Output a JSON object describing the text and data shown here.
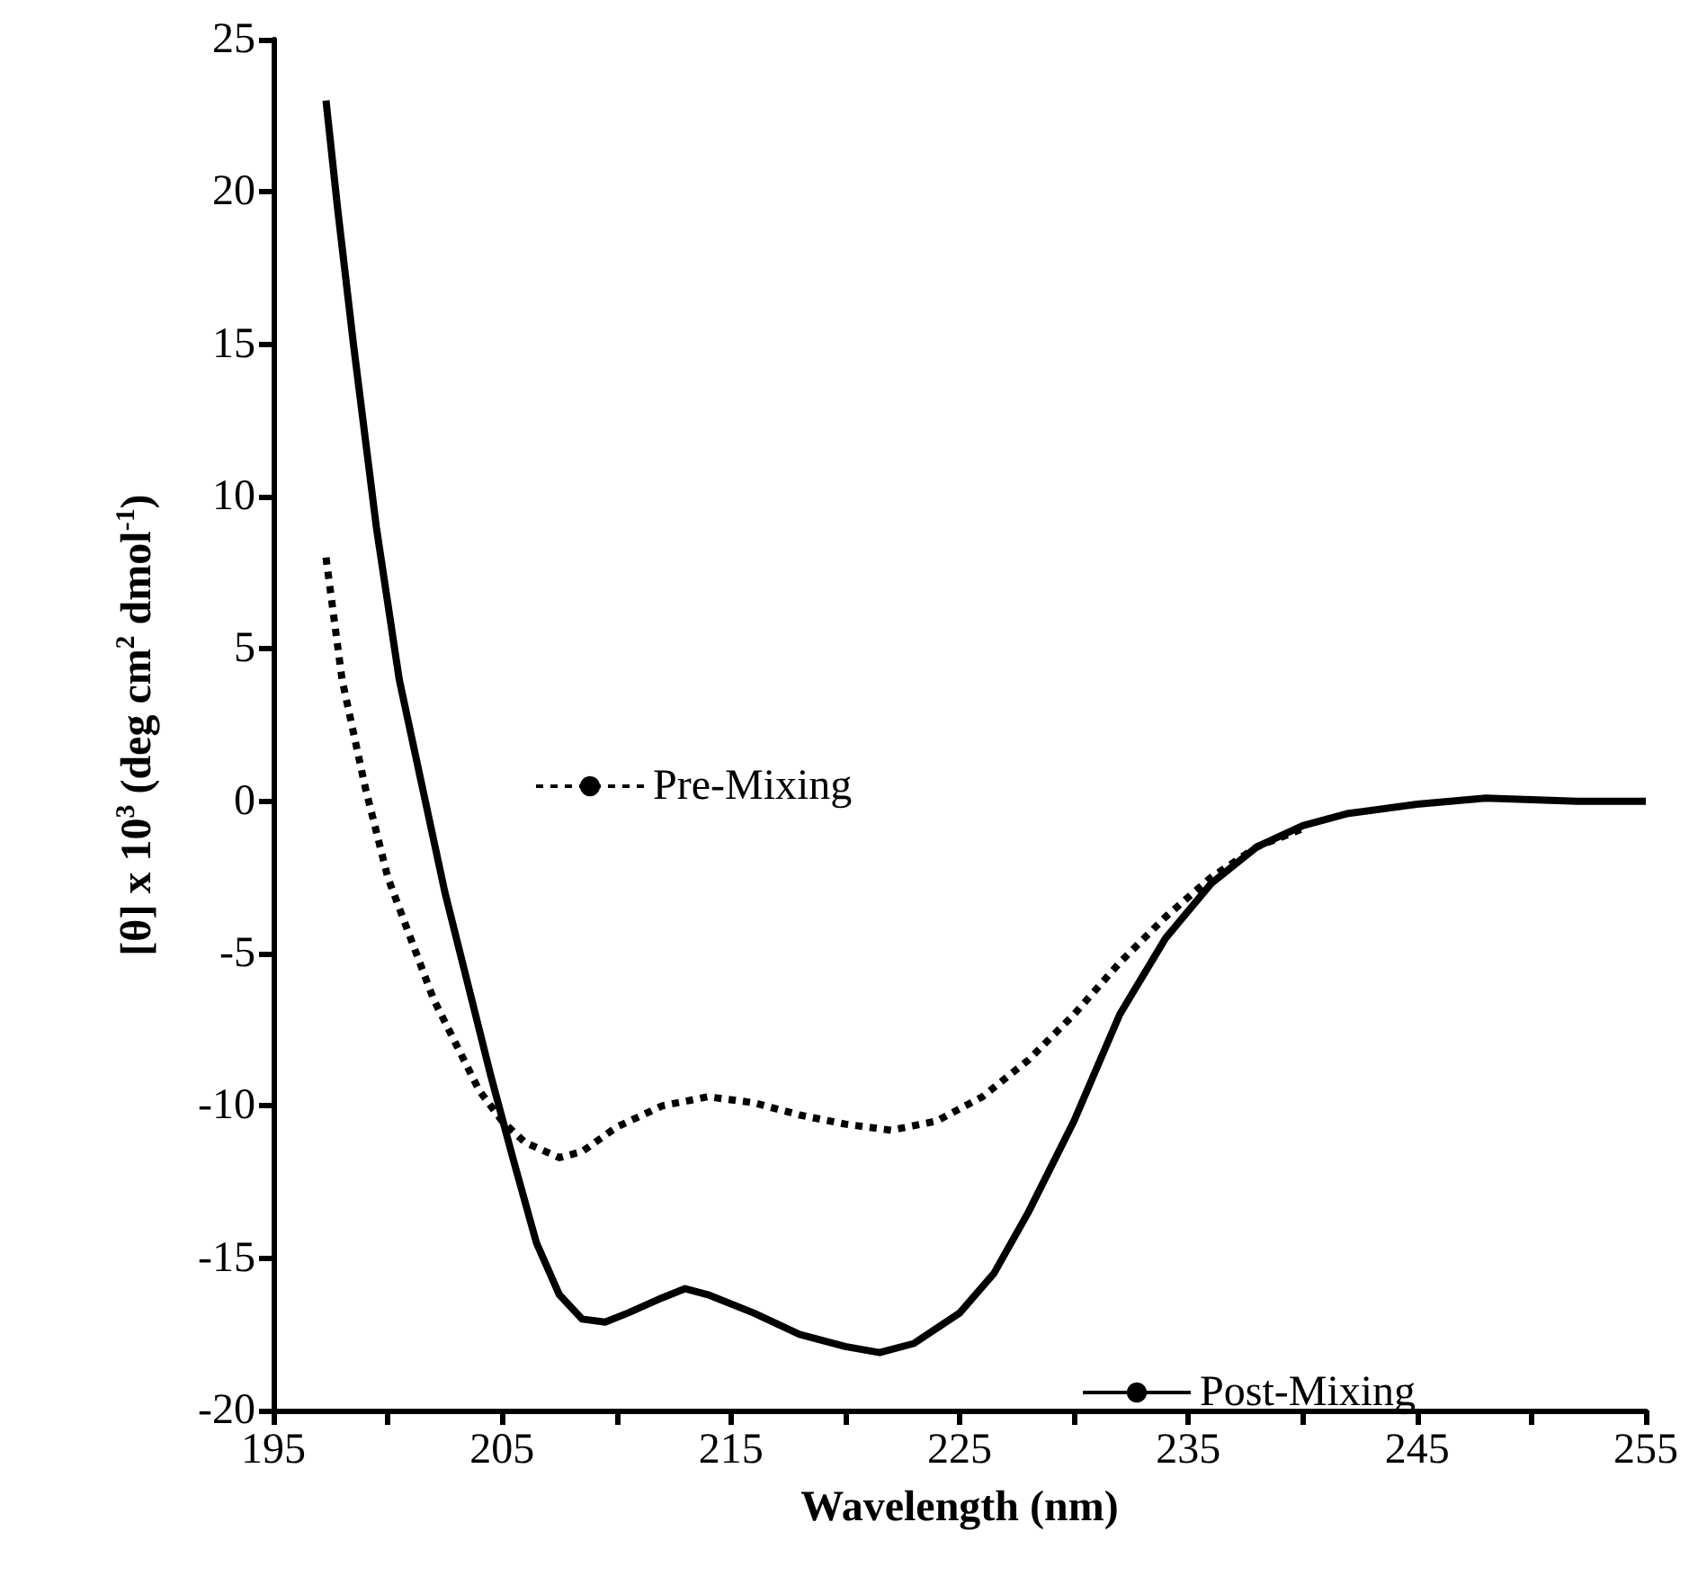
{
  "chart_data": {
    "type": "line",
    "xlabel": "Wavelength (nm)",
    "ylabel": "[θ] x 10$^{3}$ (deg cm$^{2}$ dmol$^{-1}$)",
    "xlim": [
      195,
      255
    ],
    "xticks": [
      195,
      {
        "value": 200,
        "label": null
      },
      205,
      {
        "value": 210,
        "label": null
      },
      215,
      {
        "value": 220,
        "label": null
      },
      225,
      {
        "value": 230,
        "label": null
      },
      235,
      {
        "value": 240,
        "label": null
      },
      245,
      {
        "value": 250,
        "label": null
      },
      255
    ],
    "ylim": [
      -20,
      25
    ],
    "yticks": [
      -20,
      -15,
      -10,
      -5,
      0,
      5,
      10,
      15,
      20,
      25
    ],
    "grid": false,
    "legend": "center",
    "marker": "none",
    "series": [
      {
        "name": "Pre-Mixing",
        "color": "#000000",
        "line_style": "dotted",
        "x": [
          197.3,
          198,
          199,
          200,
          201,
          202,
          203,
          204,
          205,
          206,
          207.5,
          208.5,
          210,
          212,
          214,
          216,
          218,
          220,
          222,
          224,
          226,
          228,
          230,
          232,
          234,
          236,
          238,
          240
        ],
        "values": [
          8,
          4,
          0.5,
          -2.5,
          -4.5,
          -6.5,
          -8,
          -9.5,
          -10.5,
          -11.2,
          -11.7,
          -11.5,
          -10.7,
          -10,
          -9.7,
          -9.9,
          -10.3,
          -10.6,
          -10.8,
          -10.5,
          -9.7,
          -8.5,
          -7,
          -5.3,
          -3.8,
          -2.5,
          -1.5,
          -0.9
        ]
      },
      {
        "name": "Post-Mixing",
        "color": "#000000",
        "line_style": "solid",
        "x": [
          197.3,
          197.8,
          198.5,
          199.5,
          200.5,
          201.5,
          202.5,
          203.5,
          204.5,
          205.5,
          206.5,
          207.5,
          208.5,
          209.5,
          210.5,
          212,
          213,
          214,
          216,
          218,
          220,
          221.5,
          223,
          225,
          226.5,
          228,
          230,
          232,
          234,
          236,
          238,
          240,
          242,
          245,
          248,
          252,
          255
        ],
        "values": [
          23,
          19.5,
          15,
          9,
          4,
          0.5,
          -3,
          -6,
          -9,
          -11.8,
          -14.5,
          -16.2,
          -17,
          -17.1,
          -16.8,
          -16.3,
          -16,
          -16.2,
          -16.8,
          -17.5,
          -17.9,
          -18.1,
          -17.8,
          -16.8,
          -15.5,
          -13.5,
          -10.5,
          -7,
          -4.5,
          -2.7,
          -1.5,
          -0.8,
          -0.4,
          -0.1,
          0.1,
          0,
          0
        ]
      }
    ]
  }
}
